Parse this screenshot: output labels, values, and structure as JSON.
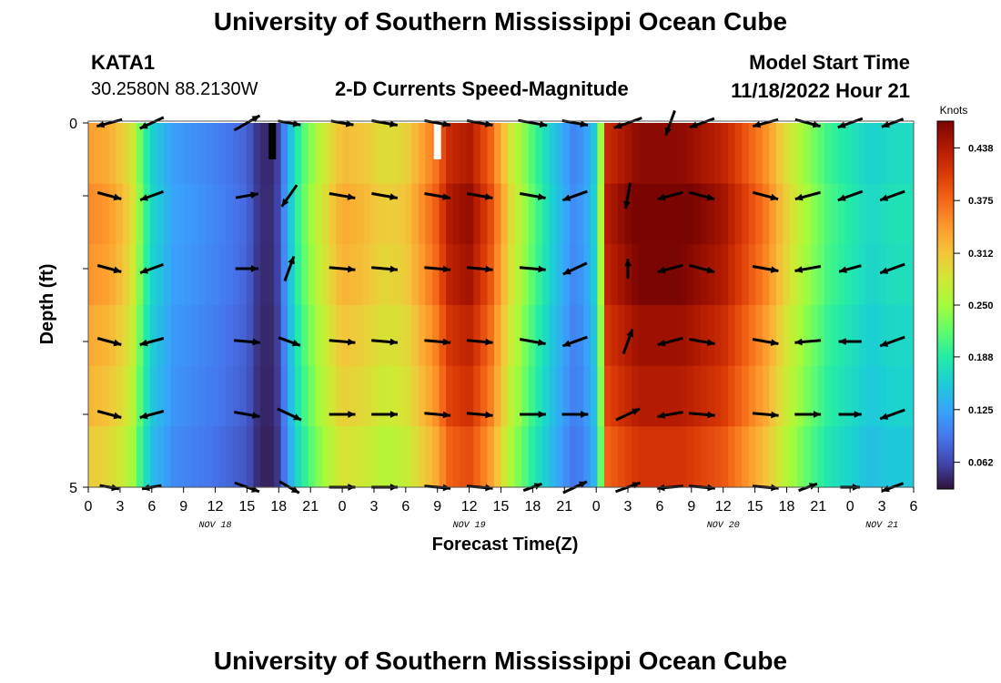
{
  "header": {
    "title": "University of Southern Mississippi Ocean Cube",
    "station": "KATA1",
    "coords": "30.2580N  88.2130W",
    "chart_title": "2-D Currents Speed-Magnitude",
    "model_start_label": "Model Start Time",
    "model_start_value": "11/18/2022 Hour 21"
  },
  "footer": {
    "title": "University of Southern Mississippi Ocean Cube"
  },
  "chart_data": {
    "type": "heatmap",
    "title": "2-D Currents Speed-Magnitude",
    "xlabel": "Forecast Time(Z)",
    "ylabel": "Depth (ft)",
    "x_ticks": [
      "0",
      "3",
      "6",
      "9",
      "12",
      "15",
      "18",
      "21",
      "0",
      "3",
      "6",
      "9",
      "12",
      "15",
      "18",
      "21",
      "0",
      "3",
      "6",
      "9",
      "12",
      "15",
      "18",
      "21",
      "0",
      "3",
      "6"
    ],
    "x_hours_start": 0,
    "x_hours_end": 78,
    "date_labels": [
      {
        "label": "NOV 18",
        "hour": 12
      },
      {
        "label": "NOV 19",
        "hour": 36
      },
      {
        "label": "NOV 20",
        "hour": 60
      },
      {
        "label": "NOV 21",
        "hour": 75
      }
    ],
    "y_ticks": [
      {
        "label": "0",
        "depth": 0
      },
      {
        "label": "5",
        "depth": 5
      }
    ],
    "ylim": [
      0,
      5
    ],
    "colorbar": {
      "unit": "Knots",
      "range": [
        0.03,
        0.47
      ],
      "ticks": [
        "0.062",
        "0.125",
        "0.188",
        "0.250",
        "0.312",
        "0.375",
        "0.438"
      ]
    },
    "speed_profile": {
      "hours": [
        0,
        2,
        4,
        5,
        6,
        8,
        12,
        15,
        16,
        17,
        18,
        19,
        20,
        22,
        24,
        26,
        28,
        30,
        33,
        34,
        36,
        38,
        40,
        42,
        44,
        46,
        47,
        48,
        48.5,
        49,
        52,
        56,
        60,
        64,
        66,
        68,
        70,
        72,
        74,
        76,
        78
      ],
      "knots": [
        0.34,
        0.33,
        0.29,
        0.22,
        0.16,
        0.12,
        0.1,
        0.08,
        0.05,
        0.04,
        0.06,
        0.14,
        0.2,
        0.27,
        0.32,
        0.31,
        0.29,
        0.3,
        0.37,
        0.42,
        0.44,
        0.38,
        0.28,
        0.21,
        0.15,
        0.1,
        0.12,
        0.16,
        0.26,
        0.42,
        0.46,
        0.46,
        0.43,
        0.35,
        0.29,
        0.24,
        0.2,
        0.18,
        0.16,
        0.17,
        0.17
      ]
    },
    "depth_factors": [
      1.0,
      1.04,
      1.02,
      0.98,
      0.95,
      0.9
    ],
    "vector_hours": [
      2,
      6,
      15,
      19,
      24,
      28,
      33,
      37,
      42,
      46,
      51,
      55,
      58,
      64,
      68,
      72,
      76
    ],
    "vector_depths": [
      0,
      1,
      2,
      3,
      4,
      5
    ],
    "vector_angles_deg": [
      [
        195,
        205,
        30,
        -10,
        -10,
        -10,
        -10,
        -10,
        -10,
        -10,
        200,
        250,
        200,
        195,
        -15,
        200,
        200
      ],
      [
        -15,
        200,
        10,
        235,
        -10,
        -10,
        -10,
        -10,
        -10,
        200,
        260,
        195,
        -15,
        -15,
        195,
        200,
        200
      ],
      [
        -15,
        200,
        0,
        70,
        -5,
        -5,
        -5,
        -5,
        -5,
        205,
        90,
        195,
        -15,
        -10,
        190,
        195,
        200
      ],
      [
        -15,
        195,
        -5,
        -20,
        -5,
        -5,
        -5,
        -5,
        -10,
        200,
        70,
        195,
        -10,
        -10,
        185,
        180,
        200
      ],
      [
        -15,
        195,
        -10,
        -25,
        0,
        0,
        -5,
        -5,
        0,
        0,
        25,
        190,
        -5,
        -5,
        0,
        0,
        200
      ],
      [
        -10,
        190,
        -20,
        -30,
        0,
        0,
        -5,
        -5,
        20,
        25,
        20,
        185,
        -5,
        -5,
        20,
        0,
        200
      ]
    ],
    "vector_lengths": [
      [
        0.8,
        0.8,
        0.9,
        0.7,
        0.7,
        0.8,
        0.8,
        0.8,
        0.9,
        0.8,
        0.9,
        0.8,
        0.8,
        0.8,
        0.8,
        0.8,
        0.7
      ],
      [
        0.75,
        0.75,
        0.7,
        0.8,
        0.8,
        0.8,
        0.8,
        0.8,
        0.8,
        0.8,
        0.8,
        0.8,
        0.8,
        0.8,
        0.8,
        0.8,
        0.8
      ],
      [
        0.75,
        0.75,
        0.7,
        0.8,
        0.8,
        0.8,
        0.8,
        0.8,
        0.8,
        0.8,
        0.6,
        0.8,
        0.8,
        0.8,
        0.8,
        0.7,
        0.8
      ],
      [
        0.75,
        0.75,
        0.8,
        0.7,
        0.8,
        0.8,
        0.8,
        0.8,
        0.8,
        0.8,
        0.8,
        0.8,
        0.8,
        0.8,
        0.8,
        0.7,
        0.8
      ],
      [
        0.75,
        0.75,
        0.8,
        0.8,
        0.8,
        0.8,
        0.8,
        0.8,
        0.8,
        0.8,
        0.8,
        0.8,
        0.8,
        0.8,
        0.8,
        0.7,
        0.8
      ],
      [
        0.6,
        0.6,
        0.8,
        0.7,
        0.8,
        0.8,
        0.8,
        0.8,
        0.6,
        0.8,
        0.8,
        0.8,
        0.8,
        0.8,
        0.6,
        0.6,
        0.7
      ]
    ],
    "marker_bars": [
      {
        "hour": 17.4,
        "color": "#000000"
      },
      {
        "hour": 33.0,
        "color": "#ffffff"
      }
    ]
  }
}
